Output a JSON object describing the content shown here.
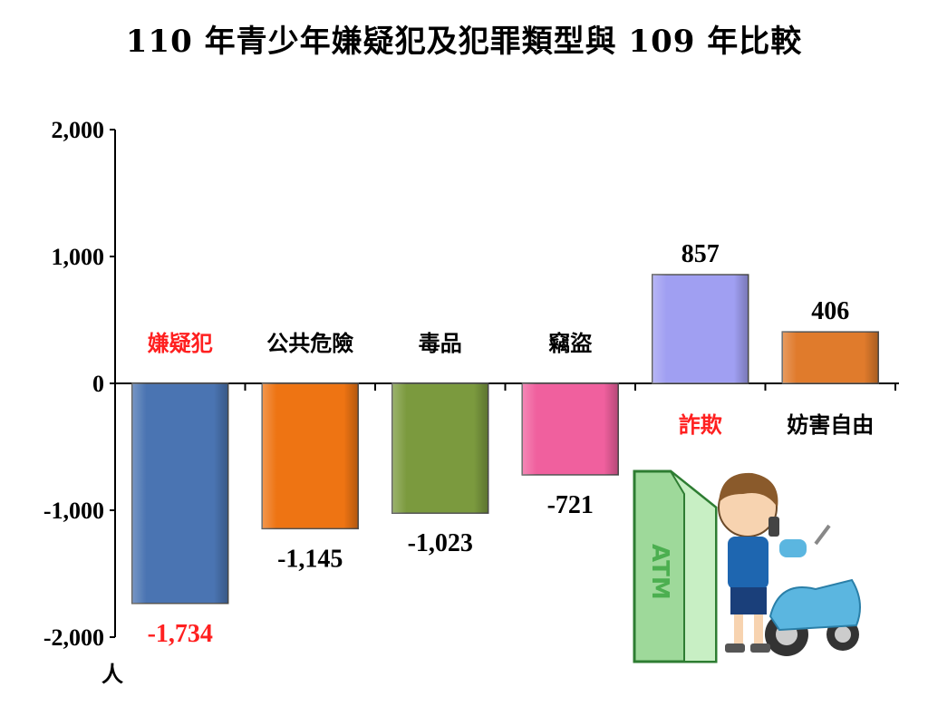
{
  "chart_data": {
    "type": "bar",
    "title": "110 年青少年嫌疑犯及犯罪類型與 109 年比較",
    "ylabel": "人",
    "xlabel": "",
    "ylim": [
      -2000,
      2000
    ],
    "yticks": [
      "2,000",
      "1,000",
      "0",
      "-1,000",
      "-2,000"
    ],
    "ytick_values": [
      2000,
      1000,
      0,
      -1000,
      -2000
    ],
    "grid": false,
    "categories": [
      "嫌疑犯",
      "公共危險",
      "毒品",
      "竊盜",
      "詐欺",
      "妨害自由"
    ],
    "values": [
      -1734,
      -1145,
      -1023,
      -721,
      857,
      406
    ],
    "value_labels": [
      "-1,734",
      "-1,145",
      "-1,023",
      "-721",
      "857",
      "406"
    ],
    "bar_colors": [
      "#4a74b2",
      "#ee7413",
      "#7b9a3e",
      "#f0609e",
      "#a09ff2",
      "#e07b2c"
    ],
    "highlight_categories": [
      "嫌疑犯",
      "詐欺"
    ],
    "highlight_color": "#ff2020",
    "illustration_text": "ATM"
  }
}
